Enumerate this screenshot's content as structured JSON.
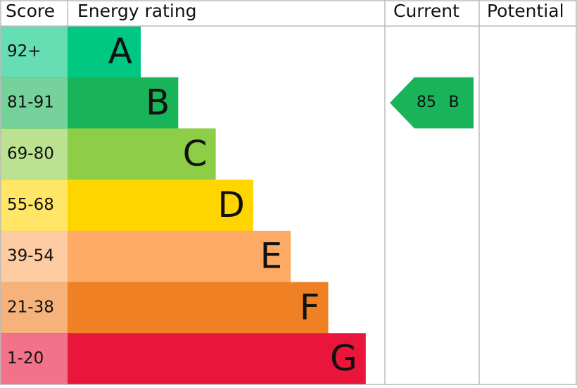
{
  "header": {
    "score": "Score",
    "energy_rating": "Energy rating",
    "current": "Current",
    "potential": "Potential"
  },
  "rows": [
    {
      "score": "92+",
      "rating": "A",
      "color": "#00c781"
    },
    {
      "score": "81-91",
      "rating": "B",
      "color": "#19b459"
    },
    {
      "score": "69-80",
      "rating": "C",
      "color": "#8dce46"
    },
    {
      "score": "55-68",
      "rating": "D",
      "color": "#ffd500"
    },
    {
      "score": "39-54",
      "rating": "E",
      "color": "#fcaa65"
    },
    {
      "score": "21-38",
      "rating": "F",
      "color": "#ef8023"
    },
    {
      "score": "1-20",
      "rating": "G",
      "color": "#e9153b"
    }
  ],
  "current": {
    "score": 85,
    "rating": "B",
    "color": "#19b459"
  }
}
